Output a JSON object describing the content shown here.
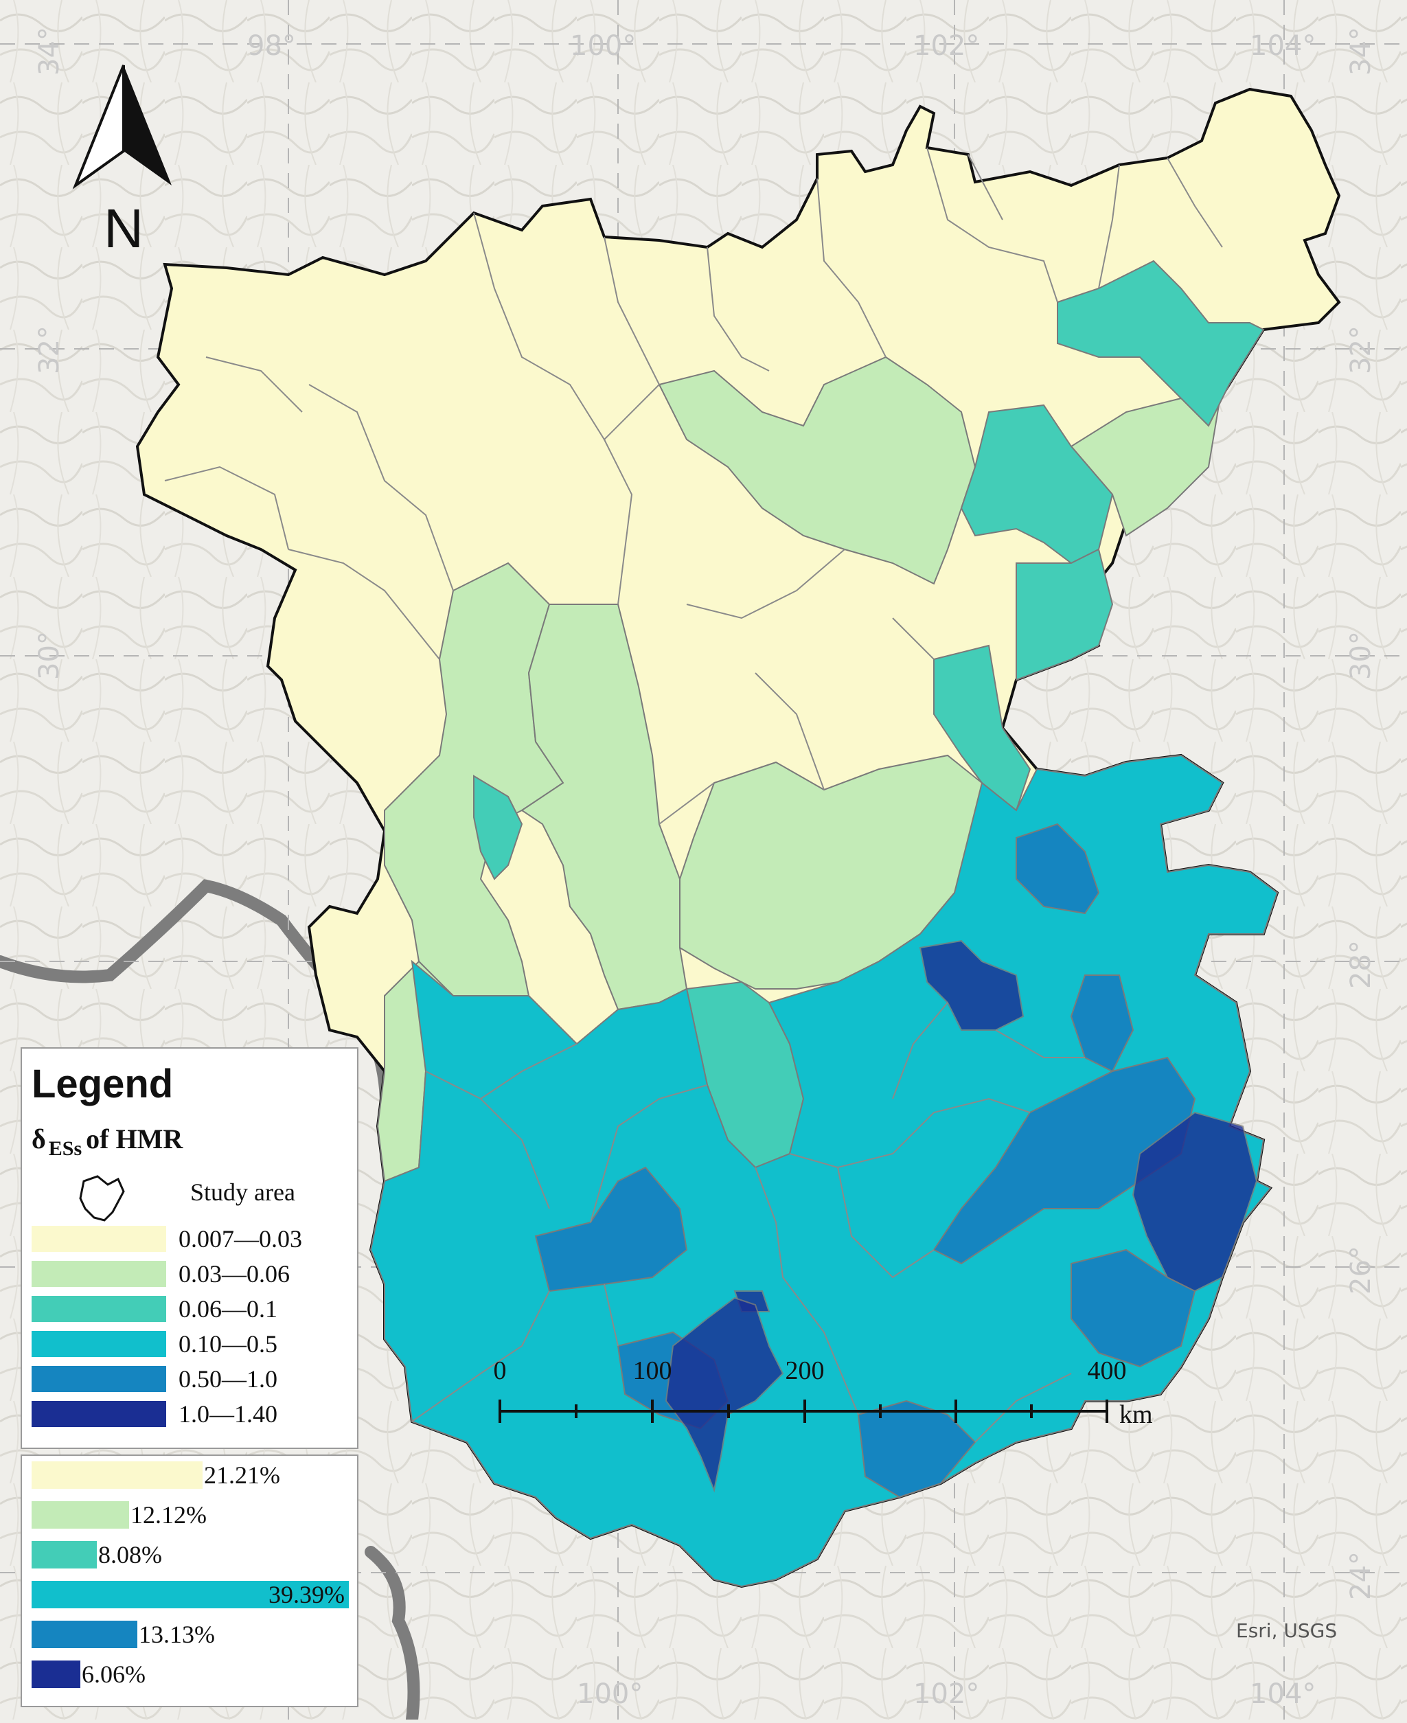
{
  "map": {
    "graticule_lon": [
      "98°",
      "100°",
      "102°",
      "104°"
    ],
    "graticule_lat": [
      "34°",
      "32°",
      "30°",
      "28°",
      "26°",
      "24°"
    ],
    "north_label": "N",
    "credit": "Esri, USGS"
  },
  "legend": {
    "title": "Legend",
    "subtitle_main": "δ",
    "subtitle_sub": "ESs",
    "subtitle_rest": "of HMR",
    "study_area_label": "Study area",
    "classes": [
      {
        "label": "0.007—0.03",
        "color": "#fbf9cd"
      },
      {
        "label": "0.03—0.06",
        "color": "#c3ebb7"
      },
      {
        "label": "0.06—0.1",
        "color": "#43cdb7"
      },
      {
        "label": "0.10—0.5",
        "color": "#11bfcc"
      },
      {
        "label": "0.50—1.0",
        "color": "#1585c0"
      },
      {
        "label": "1.0—1.40",
        "color": "#1a2e93"
      }
    ]
  },
  "percent_chart": {
    "entries": [
      {
        "label": "21.21%",
        "value": 21.21,
        "color": "#fbf9cd"
      },
      {
        "label": "12.12%",
        "value": 12.12,
        "color": "#c3ebb7"
      },
      {
        "label": "8.08%",
        "value": 8.08,
        "color": "#43cdb7"
      },
      {
        "label": "39.39%",
        "value": 39.39,
        "color": "#11bfcc"
      },
      {
        "label": "13.13%",
        "value": 13.13,
        "color": "#1585c0"
      },
      {
        "label": "6.06%",
        "value": 6.06,
        "color": "#1a2e93"
      }
    ]
  },
  "scale_bar": {
    "ticks": [
      "0",
      "100",
      "200",
      "400"
    ],
    "unit": "km"
  }
}
